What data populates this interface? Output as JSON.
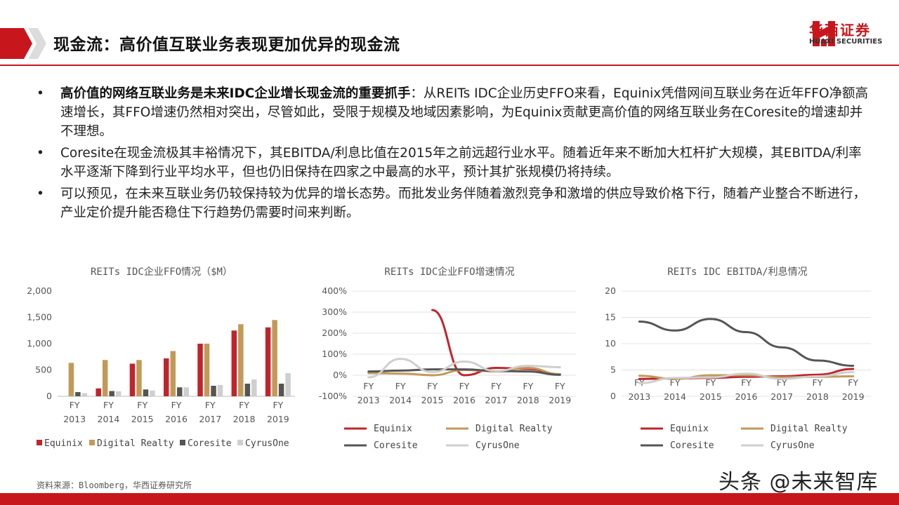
{
  "header": {
    "title": "现金流：高价值互联业务表现更加优异的现金流",
    "logo_cn": "华西证券",
    "logo_en": "HUAXI SECURITIES"
  },
  "colors": {
    "brand_red": "#c8161d",
    "equinix": "#c0242a",
    "digital_realty": "#c29a58",
    "coresite": "#555555",
    "cyrusone": "#cfcfcf"
  },
  "bullets": [
    {
      "bold": "高价值的网络互联业务是未来IDC企业增长现金流的重要抓手",
      "text": "：从REITs IDC企业历史FFO来看，Equinix凭借网间互联业务在近年FFO净额高速增长，其FFO增速仍然相对突出，尽管如此，受限于规模及地域因素影响，为Equinix贡献更高价值的网络互联业务在Coresite的增速却并不理想。"
    },
    {
      "bold": "",
      "text": "Coresite在现金流极其丰裕情况下，其EBITDA/利息比值在2015年之前远超行业水平。随着近年来不断加大杠杆扩大规模，其EBITDA/利率水平逐渐下降到行业平均水平，但也仍旧保持在四家之中最高的水平，预计其扩张规模仍将持续。"
    },
    {
      "bold": "",
      "text": "可以预见，在未来互联业务仍较保持较为优异的增长态势。而批发业务伴随着激烈竞争和激增的供应导致价格下行，随着产业整合不断进行，产业定价提升能否稳住下行趋势仍需要时间来判断。"
    }
  ],
  "chart_data": [
    {
      "type": "bar",
      "title": "REITs IDC企业FFO情况（$M）",
      "categories": [
        "FY 2013",
        "FY 2014",
        "FY 2015",
        "FY 2016",
        "FY 2017",
        "FY 2018",
        "FY 2019"
      ],
      "ylim": [
        0,
        2000
      ],
      "yticks": [
        "0",
        "500",
        "1,000",
        "1,500",
        "2,000"
      ],
      "series": [
        {
          "name": "Equinix",
          "values": [
            0,
            150,
            620,
            720,
            1000,
            1250,
            1310
          ]
        },
        {
          "name": "Digital Realty",
          "values": [
            635,
            690,
            690,
            860,
            1000,
            1370,
            1450
          ]
        },
        {
          "name": "Coresite",
          "values": [
            80,
            100,
            130,
            170,
            200,
            240,
            240
          ]
        },
        {
          "name": "CyrusOne",
          "values": [
            60,
            95,
            110,
            170,
            215,
            320,
            440
          ]
        }
      ],
      "legend_position": "bottom"
    },
    {
      "type": "line",
      "title": "REITs IDC企业FFO增速情况",
      "categories": [
        "FY 2013",
        "FY 2014",
        "FY 2015",
        "FY 2016",
        "FY 2017",
        "FY 2018",
        "FY 2019"
      ],
      "ylim": [
        -100,
        400
      ],
      "yticks": [
        "-100%",
        "0%",
        "100%",
        "200%",
        "300%",
        "400%"
      ],
      "series": [
        {
          "name": "Equinix",
          "values": [
            null,
            null,
            310,
            0,
            35,
            30,
            5
          ]
        },
        {
          "name": "Digital Realty",
          "values": [
            10,
            8,
            0,
            25,
            18,
            35,
            5
          ]
        },
        {
          "name": "Coresite",
          "values": [
            18,
            22,
            28,
            28,
            20,
            18,
            2
          ]
        },
        {
          "name": "CyrusOne",
          "values": [
            -10,
            78,
            15,
            65,
            20,
            45,
            38
          ]
        }
      ],
      "legend_position": "bottom"
    },
    {
      "type": "line",
      "title": "REITs IDC EBITDA/利息情况",
      "categories": [
        "FY 2013",
        "FY 2014",
        "FY 2015",
        "FY 2016",
        "FY 2017",
        "FY 2018",
        "FY 2019"
      ],
      "ylim": [
        0,
        20
      ],
      "yticks": [
        "0",
        "5",
        "10",
        "15",
        "20"
      ],
      "series": [
        {
          "name": "Equinix",
          "values": [
            3.3,
            3.4,
            3.5,
            3.7,
            3.8,
            4.1,
            5.2
          ]
        },
        {
          "name": "Digital Realty",
          "values": [
            3.9,
            3.3,
            4.0,
            4.0,
            3.6,
            3.7,
            3.8
          ]
        },
        {
          "name": "Coresite",
          "values": [
            14.2,
            12.5,
            14.7,
            12.2,
            9.3,
            6.8,
            5.8
          ]
        },
        {
          "name": "CyrusOne",
          "values": [
            2.5,
            3.5,
            3.6,
            4.3,
            3.3,
            3.8,
            4.6
          ]
        }
      ],
      "legend_position": "bottom"
    }
  ],
  "footer": {
    "source": "资料来源：Bloomberg，华西证券研究所",
    "watermark": "头条 @未来智库"
  }
}
